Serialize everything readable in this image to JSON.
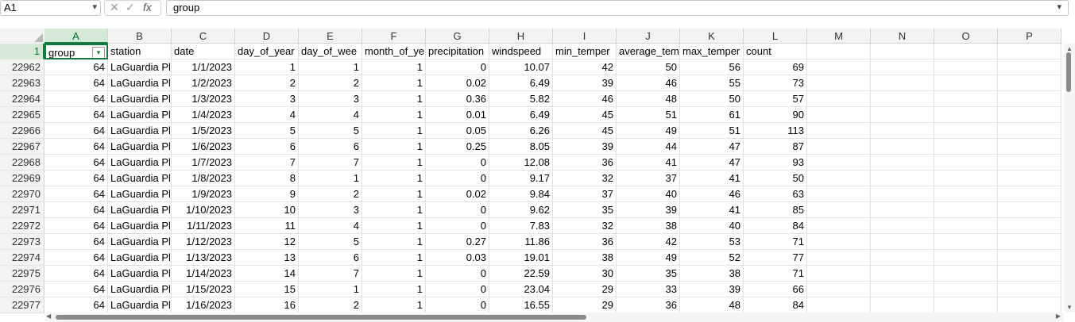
{
  "formula_bar": {
    "name_box": "A1",
    "cancel_icon": "✕",
    "enter_icon": "✓",
    "fx_label": "fx",
    "formula_value": "group"
  },
  "columns": [
    "A",
    "B",
    "C",
    "D",
    "E",
    "F",
    "G",
    "H",
    "I",
    "J",
    "K",
    "L",
    "M",
    "N",
    "O",
    "P"
  ],
  "header_row": {
    "row_number": "1",
    "cells": [
      "group",
      "station",
      "date",
      "day_of_year",
      "day_of_wee",
      "month_of_ye",
      "precipitation",
      "windspeed",
      "min_temper",
      "average_tem",
      "max_temper",
      "count"
    ]
  },
  "rows": [
    {
      "n": "22962",
      "cells": [
        "64",
        "LaGuardia Pl",
        "1/1/2023",
        "1",
        "1",
        "1",
        "0",
        "10.07",
        "42",
        "50",
        "56",
        "69"
      ]
    },
    {
      "n": "22963",
      "cells": [
        "64",
        "LaGuardia Pl",
        "1/2/2023",
        "2",
        "2",
        "1",
        "0.02",
        "6.49",
        "39",
        "46",
        "55",
        "73"
      ]
    },
    {
      "n": "22964",
      "cells": [
        "64",
        "LaGuardia Pl",
        "1/3/2023",
        "3",
        "3",
        "1",
        "0.36",
        "5.82",
        "46",
        "48",
        "50",
        "57"
      ]
    },
    {
      "n": "22965",
      "cells": [
        "64",
        "LaGuardia Pl",
        "1/4/2023",
        "4",
        "4",
        "1",
        "0.01",
        "6.49",
        "45",
        "51",
        "61",
        "90"
      ]
    },
    {
      "n": "22966",
      "cells": [
        "64",
        "LaGuardia Pl",
        "1/5/2023",
        "5",
        "5",
        "1",
        "0.05",
        "6.26",
        "45",
        "49",
        "51",
        "113"
      ]
    },
    {
      "n": "22967",
      "cells": [
        "64",
        "LaGuardia Pl",
        "1/6/2023",
        "6",
        "6",
        "1",
        "0.25",
        "8.05",
        "39",
        "44",
        "47",
        "87"
      ]
    },
    {
      "n": "22968",
      "cells": [
        "64",
        "LaGuardia Pl",
        "1/7/2023",
        "7",
        "7",
        "1",
        "0",
        "12.08",
        "36",
        "41",
        "47",
        "93"
      ]
    },
    {
      "n": "22969",
      "cells": [
        "64",
        "LaGuardia Pl",
        "1/8/2023",
        "8",
        "1",
        "1",
        "0",
        "9.17",
        "32",
        "37",
        "41",
        "50"
      ]
    },
    {
      "n": "22970",
      "cells": [
        "64",
        "LaGuardia Pl",
        "1/9/2023",
        "9",
        "2",
        "1",
        "0.02",
        "9.84",
        "37",
        "40",
        "46",
        "63"
      ]
    },
    {
      "n": "22971",
      "cells": [
        "64",
        "LaGuardia Pl",
        "1/10/2023",
        "10",
        "3",
        "1",
        "0",
        "9.62",
        "35",
        "39",
        "41",
        "85"
      ]
    },
    {
      "n": "22972",
      "cells": [
        "64",
        "LaGuardia Pl",
        "1/11/2023",
        "11",
        "4",
        "1",
        "0",
        "7.83",
        "32",
        "38",
        "40",
        "84"
      ]
    },
    {
      "n": "22973",
      "cells": [
        "64",
        "LaGuardia Pl",
        "1/12/2023",
        "12",
        "5",
        "1",
        "0.27",
        "11.86",
        "36",
        "42",
        "53",
        "71"
      ]
    },
    {
      "n": "22974",
      "cells": [
        "64",
        "LaGuardia Pl",
        "1/13/2023",
        "13",
        "6",
        "1",
        "0.03",
        "19.01",
        "38",
        "49",
        "52",
        "77"
      ]
    },
    {
      "n": "22975",
      "cells": [
        "64",
        "LaGuardia Pl",
        "1/14/2023",
        "14",
        "7",
        "1",
        "0",
        "22.59",
        "30",
        "35",
        "38",
        "71"
      ]
    },
    {
      "n": "22976",
      "cells": [
        "64",
        "LaGuardia Pl",
        "1/15/2023",
        "15",
        "1",
        "1",
        "0",
        "23.04",
        "29",
        "33",
        "39",
        "66"
      ]
    },
    {
      "n": "22977",
      "cells": [
        "64",
        "LaGuardia Pl",
        "1/16/2023",
        "16",
        "2",
        "1",
        "0",
        "16.55",
        "29",
        "36",
        "48",
        "84"
      ]
    }
  ],
  "selected_cell": "A1",
  "accent_color": "#107c41"
}
